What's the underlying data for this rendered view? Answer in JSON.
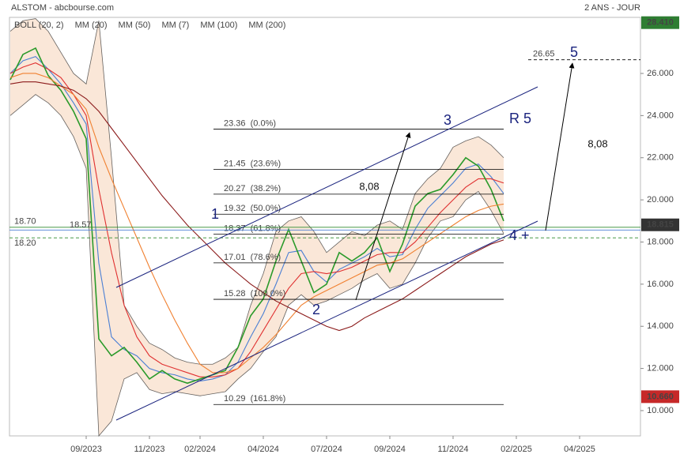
{
  "chart_data": {
    "type": "line",
    "title": "ALSTOM - abcbourse.com",
    "subtitle": "2 ANS - JOUR",
    "categories": [
      null,
      null,
      null,
      null,
      null,
      null,
      "09/2023",
      null,
      null,
      null,
      null,
      "11/2023",
      null,
      null,
      null,
      "02/2024",
      null,
      null,
      null,
      null,
      "04/2024",
      null,
      null,
      null,
      null,
      "07/2024",
      null,
      null,
      null,
      null,
      "09/2024",
      null,
      null,
      null,
      null,
      "11/2024",
      null,
      null,
      null,
      null,
      "02/2025",
      null,
      null,
      null,
      null,
      "04/2025",
      null,
      null,
      null,
      null
    ],
    "ylim": [
      8.8,
      28.66
    ],
    "yticks": [
      {
        "value": 10,
        "label": "10.000"
      },
      {
        "value": 12,
        "label": "12.000"
      },
      {
        "value": 14,
        "label": "14.000"
      },
      {
        "value": 16,
        "label": "16.000"
      },
      {
        "value": 18,
        "label": "18.000"
      },
      {
        "value": 20,
        "label": "20.000"
      },
      {
        "value": 22,
        "label": "22.000"
      },
      {
        "value": 24,
        "label": "24.000"
      },
      {
        "value": 26,
        "label": "26.000"
      }
    ],
    "series": [
      {
        "name": "BOLL (20, 2)",
        "color": "#000000",
        "upper": [
          28.0,
          28.5,
          28.6,
          28.0,
          27.0,
          26.0,
          25.5,
          28.5,
          22.0,
          15.0,
          14.0,
          13.2,
          12.9,
          12.5,
          12.3,
          12.2,
          12.2,
          12.5,
          13.0,
          15.0,
          16.5,
          18.5,
          19.0,
          19.2,
          18.5,
          17.5,
          18.0,
          18.5,
          18.3,
          18.8,
          19.0,
          18.6,
          20.3,
          21.0,
          21.5,
          22.5,
          22.8,
          23.0,
          22.6,
          22.0,
          null,
          null,
          null,
          null,
          null,
          null,
          null,
          null,
          null,
          null
        ],
        "lower": [
          24.0,
          24.5,
          25.0,
          24.6,
          24.0,
          23.0,
          21.5,
          8.8,
          9.5,
          11.5,
          11.8,
          11.0,
          10.8,
          10.9,
          10.8,
          10.7,
          10.8,
          10.9,
          11.5,
          12.0,
          12.8,
          13.5,
          15.0,
          15.5,
          15.0,
          15.2,
          15.5,
          15.8,
          16.2,
          16.5,
          15.8,
          16.0,
          17.0,
          18.2,
          19.0,
          19.2,
          20.0,
          20.4,
          19.5,
          18.4,
          null,
          null,
          null,
          null,
          null,
          null,
          null,
          null,
          null,
          null
        ]
      },
      {
        "name": "MM (20)",
        "color": "#4a7fd4",
        "values": [
          26.0,
          26.6,
          26.8,
          26.2,
          25.5,
          24.6,
          23.6,
          17.0,
          13.5,
          12.9,
          12.6,
          12.0,
          11.8,
          11.7,
          11.5,
          11.4,
          11.5,
          11.7,
          12.3,
          13.5,
          14.6,
          16.0,
          17.5,
          17.6,
          16.6,
          16.1,
          16.7,
          17.0,
          17.3,
          17.7,
          17.3,
          17.4,
          18.6,
          19.6,
          20.2,
          20.8,
          21.5,
          21.7,
          21.1,
          20.3,
          null,
          null,
          null,
          null,
          null,
          null,
          null,
          null,
          null,
          null
        ]
      },
      {
        "name": "MM (50)",
        "color": "#e03030",
        "values": [
          26.0,
          26.3,
          26.5,
          26.2,
          25.8,
          25.0,
          24.0,
          20.5,
          17.5,
          15.0,
          13.5,
          12.6,
          12.2,
          12.0,
          11.8,
          11.6,
          11.6,
          11.7,
          12.0,
          12.8,
          13.8,
          14.8,
          15.8,
          16.5,
          16.6,
          16.5,
          16.6,
          16.8,
          17.1,
          17.4,
          17.5,
          17.5,
          18.0,
          18.7,
          19.4,
          20.0,
          20.6,
          21.0,
          21.0,
          20.8,
          null,
          null,
          null,
          null,
          null,
          null,
          null,
          null,
          null,
          null
        ]
      },
      {
        "name": "MM (7)",
        "color": "#2a9a2a",
        "values": [
          25.7,
          26.9,
          27.2,
          25.9,
          25.2,
          24.2,
          22.9,
          13.4,
          12.6,
          13.0,
          12.3,
          11.5,
          11.9,
          11.5,
          11.3,
          11.5,
          11.7,
          11.9,
          13.0,
          14.5,
          15.3,
          17.1,
          18.6,
          17.1,
          15.6,
          16.0,
          17.5,
          17.1,
          17.5,
          18.2,
          16.6,
          17.9,
          19.7,
          20.3,
          20.5,
          21.2,
          22.0,
          21.6,
          20.5,
          19.0,
          null,
          null,
          null,
          null,
          null,
          null,
          null,
          null,
          null,
          null
        ]
      },
      {
        "name": "MM (100)",
        "color": "#f08030",
        "values": [
          25.8,
          26.0,
          26.0,
          25.8,
          25.4,
          25.0,
          24.3,
          22.5,
          21.0,
          19.6,
          18.2,
          16.8,
          15.5,
          14.3,
          13.2,
          12.2,
          11.8,
          11.8,
          12.0,
          12.5,
          13.0,
          13.6,
          14.3,
          15.0,
          15.4,
          15.7,
          16.0,
          16.3,
          16.6,
          16.9,
          17.0,
          17.2,
          17.6,
          18.0,
          18.4,
          18.8,
          19.2,
          19.5,
          19.7,
          19.8,
          null,
          null,
          null,
          null,
          null,
          null,
          null,
          null,
          null,
          null
        ]
      },
      {
        "name": "MM (200)",
        "color": "#8b1a1a",
        "values": [
          25.5,
          25.6,
          25.6,
          25.5,
          25.4,
          25.2,
          24.8,
          24.2,
          23.4,
          22.6,
          21.8,
          21.0,
          20.2,
          19.5,
          18.8,
          18.2,
          17.6,
          17.0,
          16.5,
          16.0,
          15.6,
          15.2,
          14.9,
          14.6,
          14.3,
          14.0,
          13.8,
          14.0,
          14.4,
          14.7,
          15.0,
          15.3,
          15.7,
          16.1,
          16.5,
          16.9,
          17.3,
          17.6,
          17.9,
          18.1,
          null,
          null,
          null,
          null,
          null,
          null,
          null,
          null,
          null,
          null
        ]
      }
    ],
    "fibonacci": [
      {
        "value": 23.36,
        "label": "23.36  (0.0%)"
      },
      {
        "value": 21.45,
        "label": "21.45  (23.6%)"
      },
      {
        "value": 20.27,
        "label": "20.27  (38.2%)"
      },
      {
        "value": 19.32,
        "label": "19.32  (50.0%)"
      },
      {
        "value": 18.37,
        "label": "18.37  (61.8%)"
      },
      {
        "value": 17.01,
        "label": "17.01  (78.6%)"
      },
      {
        "value": 15.28,
        "label": "15.28  (100.0%)"
      },
      {
        "value": 10.29,
        "label": "10.29  (161.8%)"
      }
    ],
    "hlines": [
      {
        "value": 18.7,
        "label": "18.70",
        "color": "#2e8b2e"
      },
      {
        "value": 18.2,
        "label": "18.20",
        "color": "#2e8b2e",
        "dashed": true
      },
      {
        "value": 18.57,
        "label": "18.57",
        "color": "#4a7fd4"
      },
      {
        "value": 26.65,
        "label": "26.65",
        "color": "#000000",
        "dashed": true
      }
    ],
    "price_boxes": [
      {
        "value": 28.41,
        "label": "28.410",
        "color": "#2e7d32"
      },
      {
        "value": 18.815,
        "label": "18.815",
        "color": "#333333"
      },
      {
        "value": 10.66,
        "label": "10.660",
        "color": "#c62828"
      }
    ],
    "annotations": [
      "1",
      "2",
      "3",
      "4 +",
      "5",
      "R 5",
      "8,08",
      "8,08"
    ]
  }
}
